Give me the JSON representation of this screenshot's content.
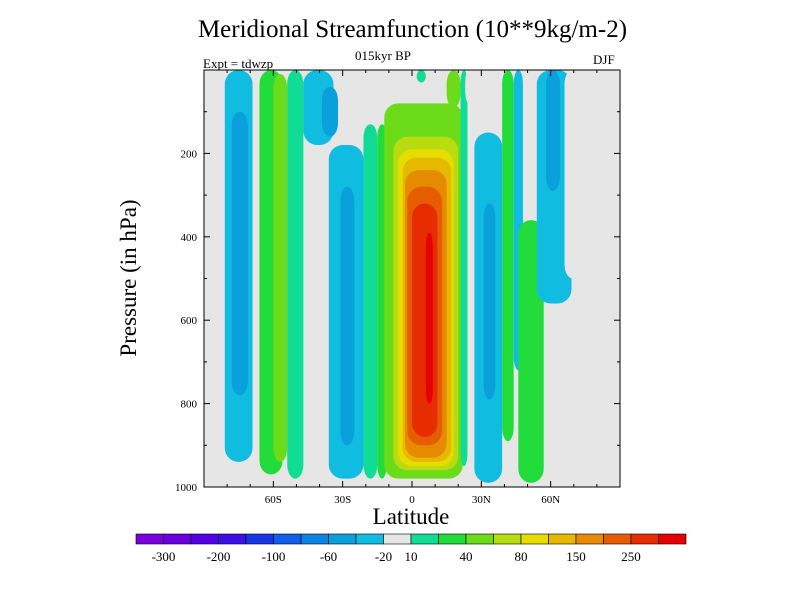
{
  "chart_data": {
    "type": "heatmap",
    "title": "Meridional Streamfunction (10**9kg/m-2)",
    "subtitle": "015kyr BP",
    "left_label": "Expt = tdwzp",
    "right_label": "DJF",
    "xlabel": "Latitude",
    "ylabel": "Pressure (in hPa)",
    "xlim": [
      -90,
      90
    ],
    "ylim": [
      1000,
      0
    ],
    "x_ticks": [
      {
        "value": -60,
        "label": "60S"
      },
      {
        "value": -30,
        "label": "30S"
      },
      {
        "value": 0,
        "label": "0"
      },
      {
        "value": 30,
        "label": "30N"
      },
      {
        "value": 60,
        "label": "60N"
      }
    ],
    "y_ticks": [
      {
        "value": 200,
        "label": "200"
      },
      {
        "value": 400,
        "label": "400"
      },
      {
        "value": 600,
        "label": "600"
      },
      {
        "value": 800,
        "label": "800"
      },
      {
        "value": 1000,
        "label": "1000"
      }
    ],
    "background_color": "#e6e6e6",
    "colorbar": {
      "colors": [
        "#7a00dc",
        "#6a00e0",
        "#5400e6",
        "#3a10e6",
        "#1a34e6",
        "#1060ea",
        "#0a84e0",
        "#0aa0dc",
        "#10bce0",
        "#e6e6e6",
        "#10dc96",
        "#22dc3c",
        "#6cdc1a",
        "#b8dc10",
        "#e6dc00",
        "#e6b800",
        "#e68a00",
        "#e65c00",
        "#e62c00",
        "#e60000"
      ],
      "labels": [
        {
          "after": 1,
          "text": "-300"
        },
        {
          "after": 3,
          "text": "-200"
        },
        {
          "after": 5,
          "text": "-100"
        },
        {
          "after": 7,
          "text": "-60"
        },
        {
          "after": 9,
          "text": "-20"
        },
        {
          "after": 10,
          "text": "10"
        },
        {
          "after": 12,
          "text": "40"
        },
        {
          "after": 14,
          "text": "80"
        },
        {
          "after": 16,
          "text": "150"
        },
        {
          "after": 18,
          "text": "250"
        }
      ]
    },
    "cells": [
      {
        "lat": [
          -83,
          -80
        ],
        "p": [
          50,
          640
        ],
        "level": 9
      },
      {
        "lat": [
          -81,
          -69
        ],
        "p": [
          0,
          940
        ],
        "level": 8
      },
      {
        "lat": [
          -78,
          -71
        ],
        "p": [
          100,
          780
        ],
        "level": 7
      },
      {
        "lat": [
          -69,
          -66
        ],
        "p": [
          0,
          650
        ],
        "level": 9
      },
      {
        "lat": [
          -66,
          -56
        ],
        "p": [
          0,
          970
        ],
        "level": 11
      },
      {
        "lat": [
          -60,
          -54
        ],
        "p": [
          10,
          940
        ],
        "level": 12
      },
      {
        "lat": [
          -54,
          -47
        ],
        "p": [
          0,
          980
        ],
        "level": 10
      },
      {
        "lat": [
          -47,
          -34
        ],
        "p": [
          0,
          180
        ],
        "level": 8
      },
      {
        "lat": [
          -39,
          -32
        ],
        "p": [
          40,
          160
        ],
        "level": 7
      },
      {
        "lat": [
          -36,
          -21
        ],
        "p": [
          180,
          980
        ],
        "level": 8
      },
      {
        "lat": [
          -31,
          -25
        ],
        "p": [
          280,
          900
        ],
        "level": 7
      },
      {
        "lat": [
          -21,
          -15
        ],
        "p": [
          130,
          980
        ],
        "level": 10
      },
      {
        "lat": [
          -15,
          -11
        ],
        "p": [
          130,
          980
        ],
        "level": 11
      },
      {
        "lat": [
          -12,
          22
        ],
        "p": [
          80,
          980
        ],
        "level": 12
      },
      {
        "lat": [
          -8,
          20
        ],
        "p": [
          160,
          960
        ],
        "level": 13
      },
      {
        "lat": [
          -6,
          18
        ],
        "p": [
          190,
          950
        ],
        "level": 14
      },
      {
        "lat": [
          -4,
          17
        ],
        "p": [
          210,
          940
        ],
        "level": 15
      },
      {
        "lat": [
          -3,
          15
        ],
        "p": [
          240,
          930
        ],
        "level": 16
      },
      {
        "lat": [
          -2,
          13
        ],
        "p": [
          280,
          900
        ],
        "level": 17
      },
      {
        "lat": [
          0,
          11
        ],
        "p": [
          320,
          880
        ],
        "level": 18
      },
      {
        "lat": [
          6,
          9
        ],
        "p": [
          390,
          800
        ],
        "level": 19
      },
      {
        "lat": [
          2,
          6
        ],
        "p": [
          0,
          30
        ],
        "level": 10
      },
      {
        "lat": [
          -2,
          1
        ],
        "p": [
          0,
          70
        ],
        "level": 9
      },
      {
        "lat": [
          15,
          21
        ],
        "p": [
          0,
          90
        ],
        "level": 12
      },
      {
        "lat": [
          21,
          24
        ],
        "p": [
          0,
          950
        ],
        "level": 10
      },
      {
        "lat": [
          23,
          26
        ],
        "p": [
          0,
          80
        ],
        "level": 9
      },
      {
        "lat": [
          27,
          39
        ],
        "p": [
          150,
          990
        ],
        "level": 8
      },
      {
        "lat": [
          31,
          36
        ],
        "p": [
          320,
          790
        ],
        "level": 7
      },
      {
        "lat": [
          39,
          44
        ],
        "p": [
          0,
          890
        ],
        "level": 11
      },
      {
        "lat": [
          44,
          48
        ],
        "p": [
          0,
          720
        ],
        "level": 8
      },
      {
        "lat": [
          46,
          57
        ],
        "p": [
          360,
          990
        ],
        "level": 11
      },
      {
        "lat": [
          52,
          55
        ],
        "p": [
          0,
          240
        ],
        "level": 9
      },
      {
        "lat": [
          54,
          69
        ],
        "p": [
          0,
          560
        ],
        "level": 8
      },
      {
        "lat": [
          58,
          64
        ],
        "p": [
          0,
          290
        ],
        "level": 7
      },
      {
        "lat": [
          66,
          73
        ],
        "p": [
          0,
          500
        ],
        "level": 9
      }
    ]
  }
}
